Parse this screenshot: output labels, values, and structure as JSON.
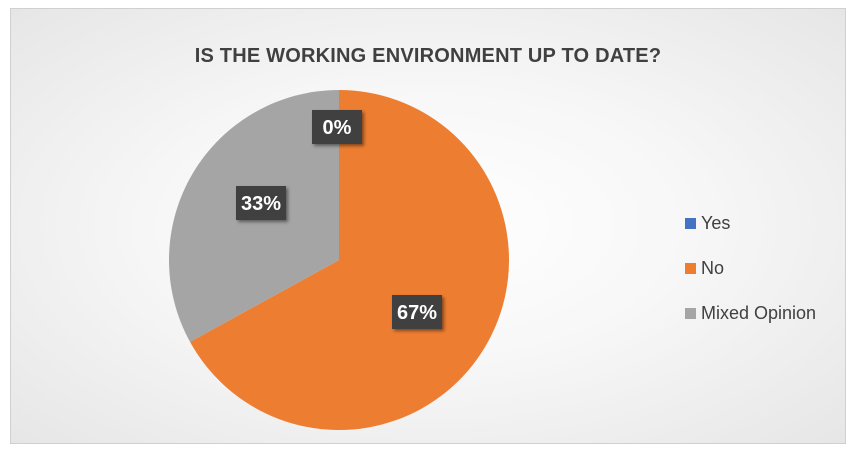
{
  "chart_data": {
    "type": "pie",
    "title": "IS THE WORKING ENVIRONMENT UP TO DATE?",
    "categories": [
      "Yes",
      "No",
      "Mixed Opinion"
    ],
    "values": [
      0,
      67,
      33
    ],
    "labels": [
      "0%",
      "67%",
      "33%"
    ],
    "colors": [
      "#4472C4",
      "#ED7D31",
      "#A5A5A5"
    ],
    "legend_position": "right"
  }
}
